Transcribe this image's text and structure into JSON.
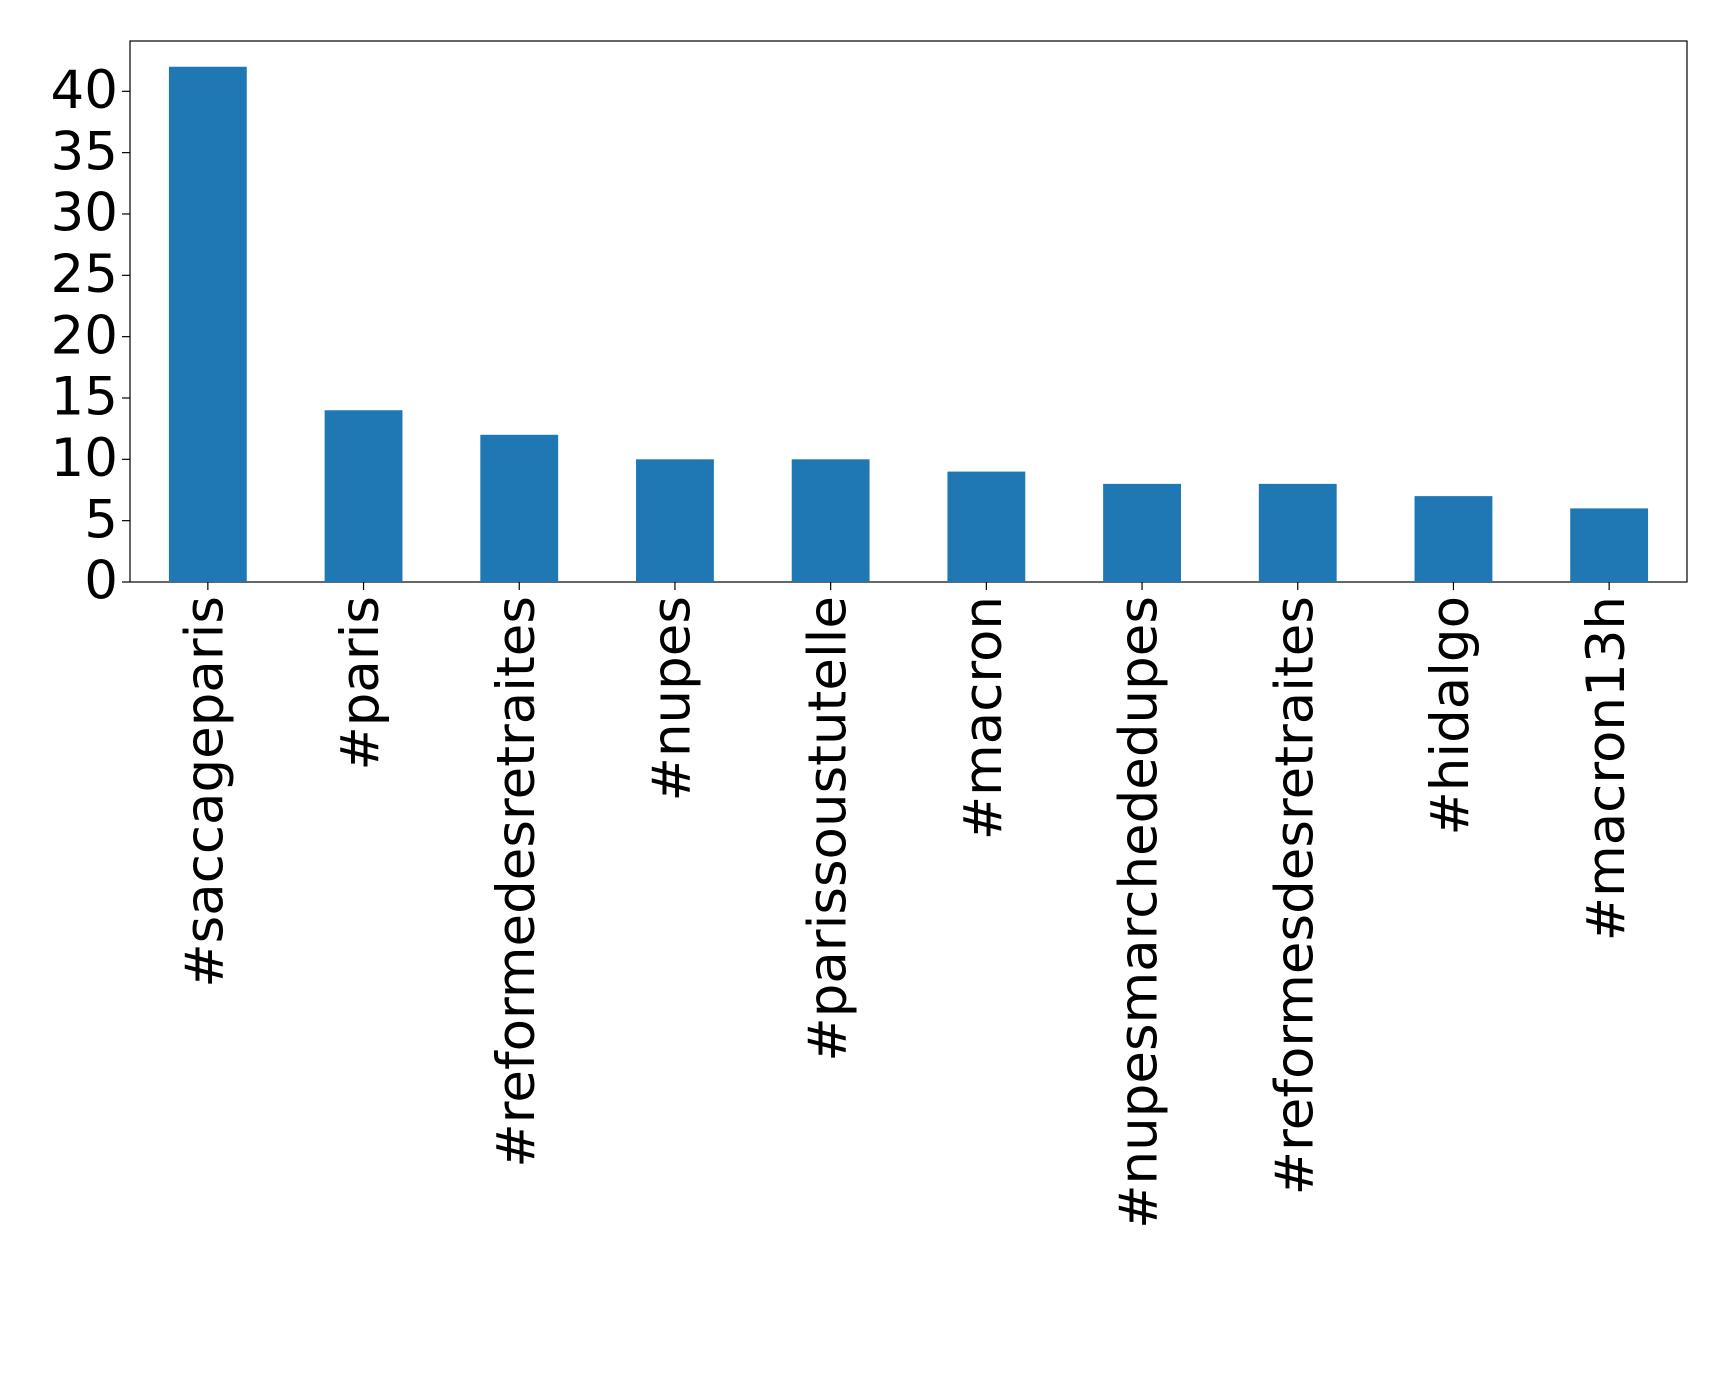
{
  "chart_data": {
    "type": "bar",
    "categories": [
      "#saccageparis",
      "#paris",
      "#reformedesretraites",
      "#nupes",
      "#parissoustutelle",
      "#macron",
      "#nupesmarchededupes",
      "#reformesdesretraites",
      "#hidalgo",
      "#macron13h"
    ],
    "values": [
      42,
      14,
      12,
      10,
      10,
      9,
      8,
      8,
      7,
      6
    ],
    "color": "#1f77b4",
    "ylim": [
      0,
      44.1
    ],
    "yticks": [
      0,
      5,
      10,
      15,
      20,
      25,
      30,
      35,
      40
    ],
    "grid": false
  }
}
